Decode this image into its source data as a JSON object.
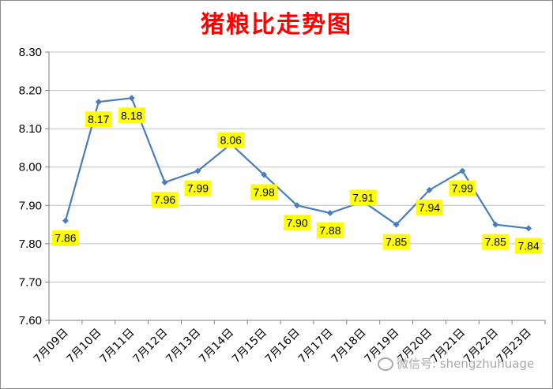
{
  "chart_data": {
    "type": "line",
    "title": "猪粮比走势图",
    "xlabel": "",
    "ylabel": "",
    "categories": [
      "7月09日",
      "7月10日",
      "7月11日",
      "7月12日",
      "7月13日",
      "7月14日",
      "7月15日",
      "7月16日",
      "7月17日",
      "7月18日",
      "7月19日",
      "7月20日",
      "7月21日",
      "7月22日",
      "7月23日"
    ],
    "series": [
      {
        "values": [
          7.86,
          8.17,
          8.18,
          7.96,
          7.99,
          8.06,
          7.98,
          7.9,
          7.88,
          7.91,
          7.85,
          7.94,
          7.99,
          7.85,
          7.84
        ],
        "labels": [
          "7.86",
          "8.17",
          "8.18",
          "7.96",
          "7.99",
          "8.06",
          "7.98",
          "7.90",
          "7.88",
          "7.91",
          "7.85",
          "7.94",
          "7.99",
          "7.85",
          "7.84"
        ]
      }
    ],
    "ylim": [
      7.6,
      8.3
    ],
    "yticks": [
      "7.60",
      "7.70",
      "7.80",
      "7.90",
      "8.00",
      "8.10",
      "8.20",
      "8.30"
    ],
    "grid": true,
    "legend": "none",
    "colors": {
      "line": "#4a7ebb",
      "label_bg": "#ffff00",
      "title": "#ff0000",
      "grid": "#c0c0c0"
    }
  },
  "watermark": {
    "text": "微信号: shengzhuhuage",
    "icon": "wechat-icon"
  }
}
